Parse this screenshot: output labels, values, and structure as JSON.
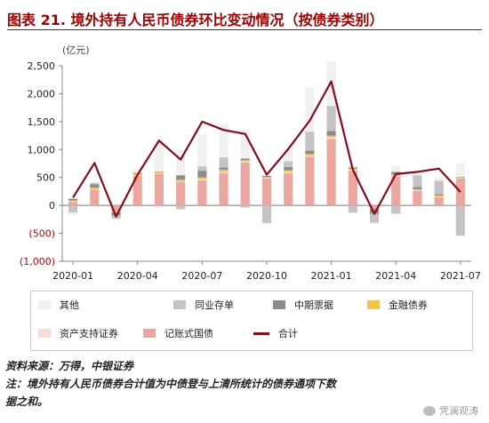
{
  "title": "图表 21. 境外持有人民币债券环比变动情况（按债券类别）",
  "footer": {
    "source": "资料来源：万得，中银证券",
    "note_line1": "注：境外持有人民币债券合计值为中债登与上清所统计的债券通项下数",
    "note_line2": "据之和。"
  },
  "watermark": "凭澜观涛",
  "colors": {
    "other": "#f0f0f0",
    "ncd": "#c4c4c4",
    "mtn": "#8c8c8c",
    "fin": "#f5c24a",
    "abs": "#f6dcd6",
    "gov": "#eba6a0",
    "total": "#8b0a1a",
    "negative_tick": "#c00000"
  },
  "legend": [
    {
      "key": "other",
      "label": "其他"
    },
    {
      "key": "ncd",
      "label": "同业存单"
    },
    {
      "key": "mtn",
      "label": "中期票据"
    },
    {
      "key": "fin",
      "label": "金融债券"
    },
    {
      "key": "abs",
      "label": "资产支持证券"
    },
    {
      "key": "gov",
      "label": "记账式国债"
    },
    {
      "key": "total",
      "label": "合计"
    }
  ],
  "chart_data": {
    "type": "bar",
    "stacked": true,
    "unit": "(亿元)",
    "ylim": [
      -1000,
      2500
    ],
    "yticks": [
      {
        "value": 2500,
        "label": "2,500"
      },
      {
        "value": 2000,
        "label": "2,000"
      },
      {
        "value": 1500,
        "label": "1,500"
      },
      {
        "value": 1000,
        "label": "1,000"
      },
      {
        "value": 500,
        "label": "500"
      },
      {
        "value": 0,
        "label": "0"
      },
      {
        "value": -500,
        "label": "(500)"
      },
      {
        "value": -1000,
        "label": "(1,000)"
      }
    ],
    "categories": [
      "2020-01",
      "2020-02",
      "2020-03",
      "2020-04",
      "2020-05",
      "2020-06",
      "2020-07",
      "2020-08",
      "2020-09",
      "2020-10",
      "2020-11",
      "2020-12",
      "2021-01",
      "2021-02",
      "2021-03",
      "2021-04",
      "2021-05",
      "2021-06",
      "2021-07"
    ],
    "xtick_labels": [
      {
        "index": 0,
        "label": "2020-01"
      },
      {
        "index": 3,
        "label": "2020-04"
      },
      {
        "index": 6,
        "label": "2020-07"
      },
      {
        "index": 9,
        "label": "2020-10"
      },
      {
        "index": 12,
        "label": "2021-01"
      },
      {
        "index": 15,
        "label": "2021-04"
      },
      {
        "index": 18,
        "label": "2021-07"
      }
    ],
    "series": [
      {
        "key": "gov",
        "name": "记账式国债",
        "values": [
          60,
          280,
          -120,
          530,
          560,
          420,
          450,
          580,
          770,
          480,
          580,
          870,
          1190,
          620,
          -60,
          520,
          260,
          150,
          480
        ]
      },
      {
        "key": "abs",
        "name": "资产支持证券",
        "values": [
          10,
          10,
          0,
          10,
          10,
          10,
          20,
          20,
          20,
          10,
          20,
          20,
          30,
          20,
          0,
          10,
          10,
          10,
          10
        ]
      },
      {
        "key": "fin",
        "name": "金融债券",
        "values": [
          20,
          30,
          -10,
          20,
          20,
          30,
          30,
          40,
          20,
          20,
          30,
          30,
          30,
          20,
          -10,
          20,
          20,
          20,
          10
        ]
      },
      {
        "key": "mtn",
        "name": "中期票据",
        "values": [
          30,
          60,
          -50,
          10,
          10,
          80,
          120,
          40,
          30,
          20,
          60,
          60,
          80,
          20,
          -80,
          50,
          40,
          20,
          10
        ]
      },
      {
        "key": "ncd",
        "name": "同业存单",
        "values": [
          -130,
          20,
          -60,
          20,
          -20,
          -70,
          80,
          180,
          -40,
          -320,
          100,
          340,
          450,
          -130,
          -160,
          -150,
          210,
          240,
          -540
        ]
      },
      {
        "key": "other",
        "name": "其他",
        "values": [
          -40,
          30,
          -10,
          60,
          560,
          470,
          570,
          600,
          520,
          20,
          240,
          790,
          800,
          20,
          -30,
          110,
          40,
          80,
          250
        ]
      }
    ],
    "total": {
      "key": "total",
      "name": "合计",
      "values": [
        140,
        760,
        -200,
        550,
        1160,
        820,
        1500,
        1350,
        1280,
        550,
        1010,
        1520,
        2220,
        640,
        -150,
        560,
        600,
        660,
        240
      ]
    }
  }
}
